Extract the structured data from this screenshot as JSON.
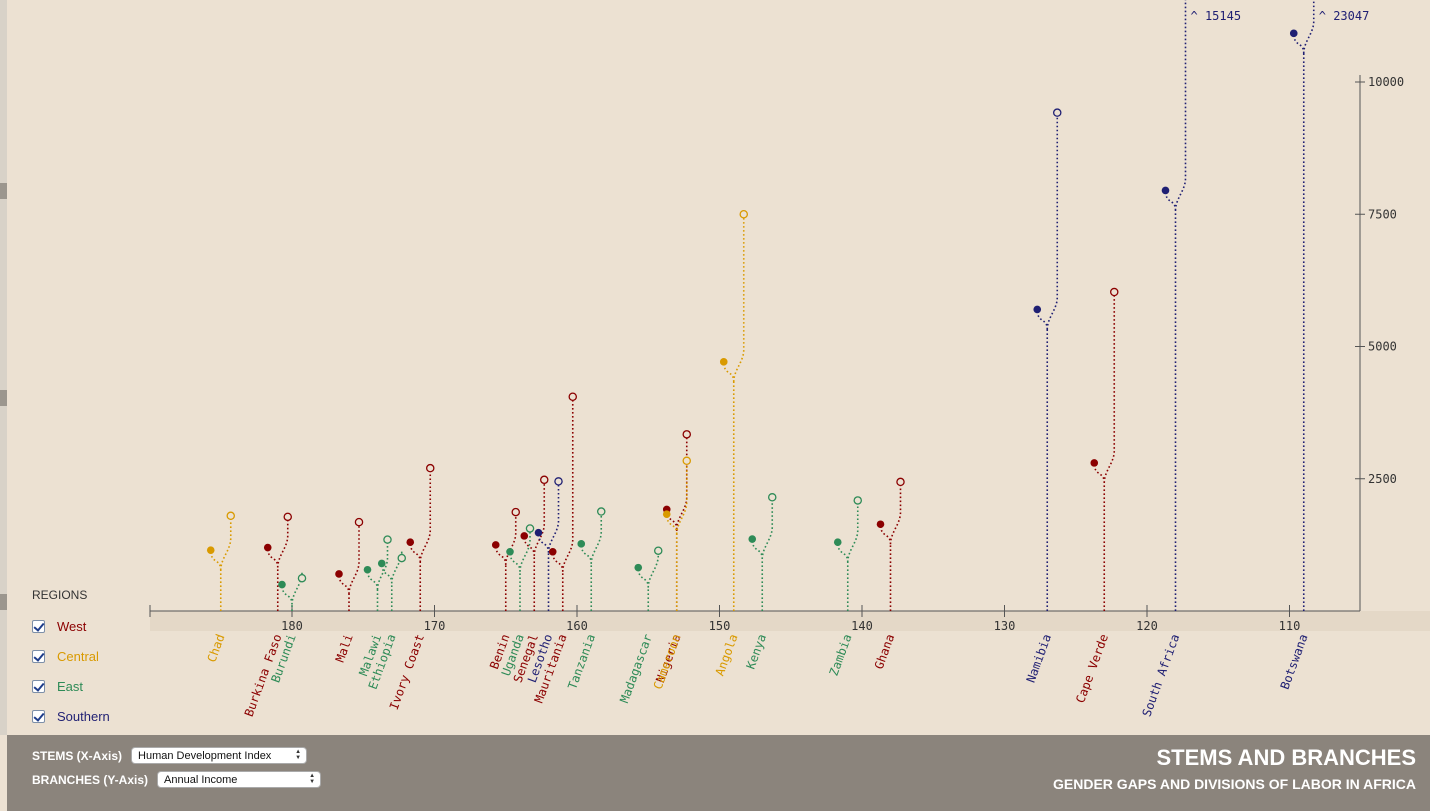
{
  "chart_data": {
    "type": "stem-and-branch",
    "x_axis": {
      "ticks": [
        180,
        170,
        160,
        150,
        140,
        130,
        120,
        110
      ],
      "range": [
        190,
        105
      ],
      "reversed": true
    },
    "y_axis": {
      "ticks": [
        2500,
        5000,
        7500,
        10000
      ],
      "range": [
        0,
        10500
      ]
    },
    "series_colors": {
      "West": "#8b0000",
      "Central": "#d99a00",
      "East": "#2e8b57",
      "Southern": "#1f1f73"
    },
    "countries": [
      {
        "name": "Chad",
        "region": "Central",
        "hdi": 185,
        "female": 1150,
        "male": 1800
      },
      {
        "name": "Burkina Faso",
        "region": "West",
        "hdi": 181,
        "female": 1200,
        "male": 1780
      },
      {
        "name": "Burundi",
        "region": "East",
        "hdi": 180,
        "female": 500,
        "male": 620
      },
      {
        "name": "Mali",
        "region": "West",
        "hdi": 176,
        "female": 700,
        "male": 1680
      },
      {
        "name": "Malawi",
        "region": "East",
        "hdi": 174,
        "female": 780,
        "male": 1350
      },
      {
        "name": "Ethiopia",
        "region": "East",
        "hdi": 173,
        "female": 900,
        "male": 1000
      },
      {
        "name": "Ivory Coast",
        "region": "West",
        "hdi": 171,
        "female": 1300,
        "male": 2700
      },
      {
        "name": "Benin",
        "region": "West",
        "hdi": 165,
        "female": 1250,
        "male": 1870
      },
      {
        "name": "Uganda",
        "region": "East",
        "hdi": 164,
        "female": 1120,
        "male": 1560
      },
      {
        "name": "Senegal",
        "region": "West",
        "hdi": 163,
        "female": 1420,
        "male": 2480
      },
      {
        "name": "Lesotho",
        "region": "Southern",
        "hdi": 162,
        "female": 1480,
        "male": 2450
      },
      {
        "name": "Mauritania",
        "region": "West",
        "hdi": 161,
        "female": 1120,
        "male": 4050
      },
      {
        "name": "Tanzania",
        "region": "East",
        "hdi": 159,
        "female": 1270,
        "male": 1880
      },
      {
        "name": "Madagascar",
        "region": "East",
        "hdi": 155,
        "female": 820,
        "male": 1140
      },
      {
        "name": "Nigeria",
        "region": "West",
        "hdi": 153,
        "female": 1920,
        "male": 3340
      },
      {
        "name": "Cameroon",
        "region": "Central",
        "hdi": 153,
        "female": 1830,
        "male": 2840
      },
      {
        "name": "Angola",
        "region": "Central",
        "hdi": 149,
        "female": 4710,
        "male": 7500
      },
      {
        "name": "Kenya",
        "region": "East",
        "hdi": 147,
        "female": 1360,
        "male": 2150
      },
      {
        "name": "Zambia",
        "region": "East",
        "hdi": 141,
        "female": 1300,
        "male": 2090
      },
      {
        "name": "Ghana",
        "region": "West",
        "hdi": 138,
        "female": 1640,
        "male": 2440
      },
      {
        "name": "Namibia",
        "region": "Southern",
        "hdi": 127,
        "female": 5700,
        "male": 9420
      },
      {
        "name": "Cape Verde",
        "region": "West",
        "hdi": 123,
        "female": 2800,
        "male": 6030
      },
      {
        "name": "South Africa",
        "region": "Southern",
        "hdi": 118,
        "female": 7950,
        "male": 15145,
        "overflow_label": "^ 15145"
      },
      {
        "name": "Botswana",
        "region": "Southern",
        "hdi": 109,
        "female": 10920,
        "male": 23047,
        "overflow_label": "^ 23047"
      }
    ]
  },
  "legend": {
    "title": "REGIONS",
    "items": [
      {
        "label": "West",
        "color": "#8b0000"
      },
      {
        "label": "Central",
        "color": "#d99a00"
      },
      {
        "label": "East",
        "color": "#2e8b57"
      },
      {
        "label": "Southern",
        "color": "#1f1f73"
      }
    ]
  },
  "controls": {
    "stems_label": "STEMS (X-Axis)",
    "stems_value": "Human Development Index",
    "branches_label": "BRANCHES (Y-Axis)",
    "branches_value": "Annual Income"
  },
  "header": {
    "title": "STEMS AND BRANCHES",
    "subtitle": "GENDER GAPS AND DIVISIONS OF LABOR IN AFRICA"
  }
}
